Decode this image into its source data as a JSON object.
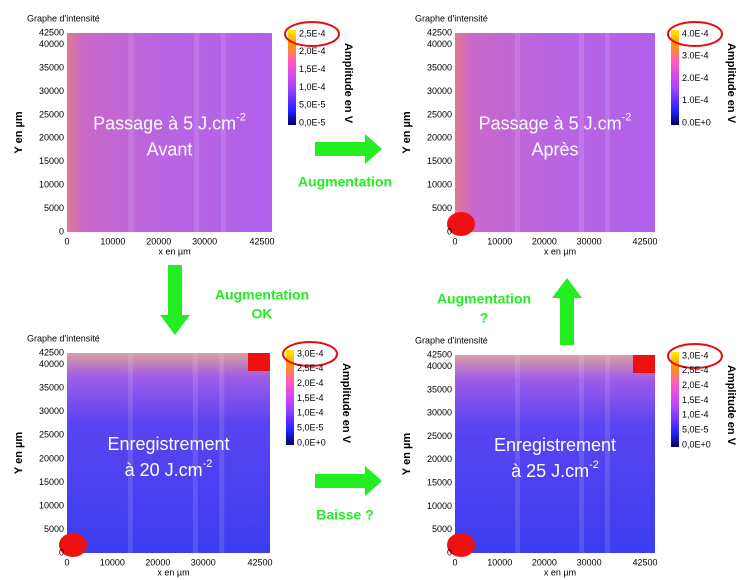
{
  "panels": [
    {
      "title": "Graphe d'intensité",
      "y_axis_label": "Y en µm",
      "x_axis_label": "x en µm",
      "y_ticks": [
        "42500",
        "40000",
        "35000",
        "30000",
        "25000",
        "20000",
        "15000",
        "10000",
        "5000",
        "0"
      ],
      "x_ticks": [
        "0",
        "10000",
        "20000",
        "30000",
        "42500"
      ],
      "colorbar_label": "Amplitude en V",
      "colorbar_ticks": [
        "2,5E-4",
        "2,0E-4",
        "1,5E-4",
        "1,0E-4",
        "5,0E-5",
        "0,0E-5"
      ],
      "overlay": [
        {
          "text": "Passage à 5 J.cm",
          "sup": "-2"
        },
        {
          "text": "Avant"
        }
      ]
    },
    {
      "title": "Graphe d'intensité",
      "y_axis_label": "Y en µm",
      "x_axis_label": "x en µm",
      "y_ticks": [
        "42500",
        "40000",
        "35000",
        "30000",
        "25000",
        "20000",
        "15000",
        "10000",
        "5000",
        "0"
      ],
      "x_ticks": [
        "0",
        "10000",
        "20000",
        "30000",
        "42500"
      ],
      "colorbar_label": "Amplitude en V",
      "colorbar_ticks": [
        "4.0E-4",
        "3.0E-4",
        "2.0E-4",
        "1.0E-4",
        "0.0E+0"
      ],
      "overlay": [
        {
          "text": "Passage à 5 J.cm",
          "sup": "-2"
        },
        {
          "text": "Après"
        }
      ]
    },
    {
      "title": "Graphe d'intensité",
      "y_axis_label": "Y en µm",
      "x_axis_label": "x en µm",
      "y_ticks": [
        "42500",
        "40000",
        "35000",
        "30000",
        "25000",
        "20000",
        "15000",
        "10000",
        "5000",
        "0"
      ],
      "x_ticks": [
        "0",
        "10000",
        "20000",
        "30000",
        "42500"
      ],
      "colorbar_label": "Amplitude en V",
      "colorbar_ticks": [
        "3,0E-4",
        "2,5E-4",
        "2,0E-4",
        "1,5E-4",
        "1,0E-4",
        "5,0E-5",
        "0,0E+0"
      ],
      "overlay": [
        {
          "text": "Enregistrement"
        },
        {
          "text": "à 20 J.cm",
          "sup": "-2"
        }
      ]
    },
    {
      "title": "Graphe d'intensité",
      "y_axis_label": "Y en µm",
      "x_axis_label": "x en µm",
      "y_ticks": [
        "42500",
        "40000",
        "35000",
        "30000",
        "25000",
        "20000",
        "15000",
        "10000",
        "5000",
        "0"
      ],
      "x_ticks": [
        "0",
        "10000",
        "20000",
        "30000",
        "42500"
      ],
      "colorbar_label": "Amplitude en V",
      "colorbar_ticks": [
        "3,0E-4",
        "2,5E-4",
        "2,0E-4",
        "1,5E-4",
        "1,0E-4",
        "5,0E-5",
        "0,0E+0"
      ],
      "overlay": [
        {
          "text": "Enregistrement"
        },
        {
          "text": "à 25 J.cm",
          "sup": "-2"
        }
      ]
    }
  ],
  "annotations": [
    {
      "lines": [
        "Augmentation"
      ]
    },
    {
      "lines": [
        "Augmentation",
        "OK"
      ]
    },
    {
      "lines": [
        "Augmentation",
        "?"
      ]
    },
    {
      "lines": [
        "Baisse ?"
      ]
    }
  ]
}
